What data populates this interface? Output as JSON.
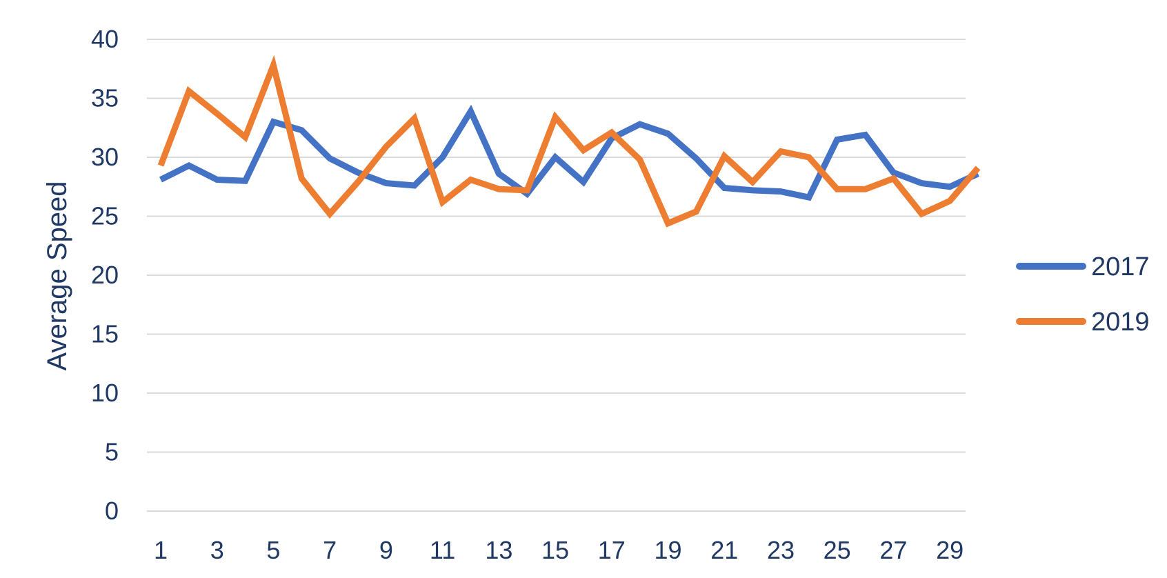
{
  "chart_data": {
    "type": "line",
    "title": "",
    "xlabel": "",
    "ylabel": "Average Speed",
    "x": [
      1,
      2,
      3,
      4,
      5,
      6,
      7,
      8,
      9,
      10,
      11,
      12,
      13,
      14,
      15,
      16,
      17,
      18,
      19,
      20,
      21,
      22,
      23,
      24,
      25,
      26,
      27,
      28,
      29,
      30
    ],
    "x_tick_labels": [
      "1",
      "3",
      "5",
      "7",
      "9",
      "11",
      "13",
      "15",
      "17",
      "19",
      "21",
      "23",
      "25",
      "27",
      "29"
    ],
    "y_tick_labels": [
      "0",
      "5",
      "10",
      "15",
      "20",
      "25",
      "30",
      "35",
      "40"
    ],
    "ylim": [
      0,
      40
    ],
    "y_major_step": 5,
    "grid": "horizontal",
    "legend_position": "right",
    "series": [
      {
        "name": "2017",
        "color": "#4472c4",
        "values": [
          28.1,
          29.3,
          28.1,
          28.0,
          33.0,
          32.3,
          29.9,
          28.7,
          27.8,
          27.6,
          30.0,
          33.9,
          28.6,
          26.9,
          30.0,
          27.9,
          31.6,
          32.8,
          32.0,
          29.9,
          27.4,
          27.2,
          27.1,
          26.6,
          31.5,
          31.9,
          28.7,
          27.8,
          27.5,
          28.6
        ]
      },
      {
        "name": "2019",
        "color": "#ed7d31",
        "values": [
          29.3,
          35.6,
          33.7,
          31.7,
          37.8,
          28.2,
          25.2,
          27.9,
          30.9,
          33.3,
          26.2,
          28.1,
          27.3,
          27.2,
          33.4,
          30.6,
          32.1,
          29.8,
          24.4,
          25.4,
          30.1,
          27.9,
          30.5,
          30.0,
          27.3,
          27.3,
          28.2,
          25.2,
          26.3,
          29.1
        ]
      }
    ]
  }
}
